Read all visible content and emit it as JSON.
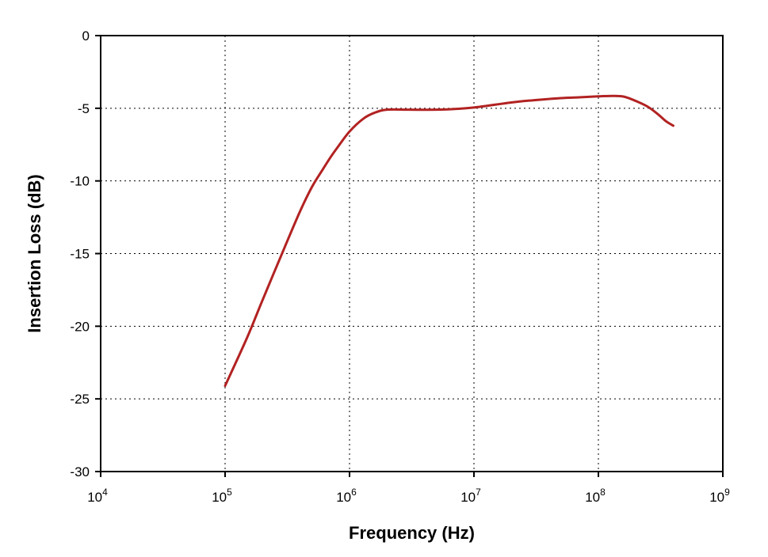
{
  "chart_data": {
    "type": "line",
    "title": "",
    "xlabel": "Frequency (Hz)",
    "ylabel": "Insertion Loss (dB)",
    "x_scale": "log",
    "xlim": [
      10000,
      1000000000
    ],
    "ylim": [
      -30,
      0
    ],
    "x_ticks": [
      {
        "value": 10000,
        "base": "10",
        "exp": "4"
      },
      {
        "value": 100000,
        "base": "10",
        "exp": "5"
      },
      {
        "value": 1000000,
        "base": "10",
        "exp": "6"
      },
      {
        "value": 10000000,
        "base": "10",
        "exp": "7"
      },
      {
        "value": 100000000,
        "base": "10",
        "exp": "8"
      },
      {
        "value": 1000000000,
        "base": "10",
        "exp": "9"
      }
    ],
    "y_ticks": [
      {
        "value": 0,
        "label": "0"
      },
      {
        "value": -5,
        "label": "-5"
      },
      {
        "value": -10,
        "label": "-10"
      },
      {
        "value": -15,
        "label": "-15"
      },
      {
        "value": -20,
        "label": "-20"
      },
      {
        "value": -25,
        "label": "-25"
      },
      {
        "value": -30,
        "label": "-30"
      }
    ],
    "grid": true,
    "legend": "none",
    "series": [
      {
        "color": "#b22222",
        "points": [
          [
            100000,
            -24.1
          ],
          [
            150000,
            -20.8
          ],
          [
            200000,
            -18.2
          ],
          [
            300000,
            -14.6
          ],
          [
            400000,
            -12.1
          ],
          [
            500000,
            -10.4
          ],
          [
            600000,
            -9.3
          ],
          [
            700000,
            -8.4
          ],
          [
            800000,
            -7.7
          ],
          [
            1000000,
            -6.6
          ],
          [
            1300000,
            -5.7
          ],
          [
            1600000,
            -5.3
          ],
          [
            2000000,
            -5.1
          ],
          [
            3000000,
            -5.1
          ],
          [
            5000000,
            -5.1
          ],
          [
            7000000,
            -5.05
          ],
          [
            10000000,
            -4.95
          ],
          [
            20000000,
            -4.6
          ],
          [
            30000000,
            -4.45
          ],
          [
            50000000,
            -4.3
          ],
          [
            70000000,
            -4.25
          ],
          [
            100000000,
            -4.18
          ],
          [
            130000000,
            -4.15
          ],
          [
            160000000,
            -4.2
          ],
          [
            200000000,
            -4.5
          ],
          [
            250000000,
            -4.9
          ],
          [
            300000000,
            -5.4
          ],
          [
            350000000,
            -5.9
          ],
          [
            400000000,
            -6.2
          ]
        ]
      }
    ]
  }
}
